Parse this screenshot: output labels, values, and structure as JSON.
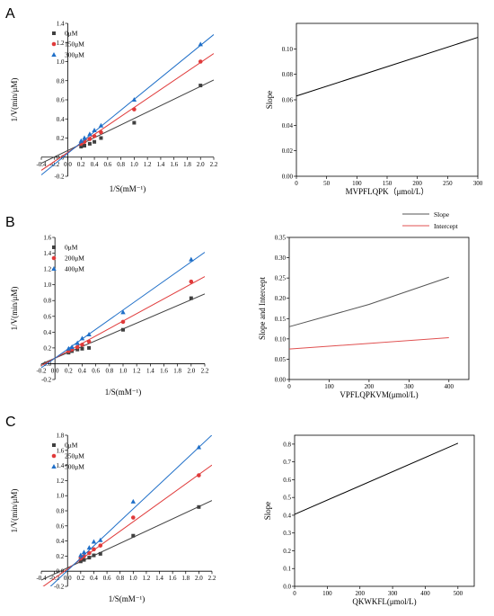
{
  "chart_data": [
    {
      "id": "A-lineweaver",
      "panel_label": "A",
      "type": "scatter",
      "title": "",
      "xlabel": "1/S(mM⁻¹)",
      "ylabel": "1/V(min/μM)",
      "xlim": [
        -0.4,
        2.2
      ],
      "ylim": [
        -0.2,
        1.4
      ],
      "xticks": [
        -0.4,
        -0.2,
        0.0,
        0.2,
        0.4,
        0.6,
        0.8,
        1.0,
        1.2,
        1.4,
        1.6,
        1.8,
        2.0,
        2.2
      ],
      "xticklabels": [
        "-0.4",
        "-0.2",
        "0.0",
        "0.2",
        "0.4",
        "0.6",
        "0.8",
        "1.0",
        "1.2",
        "1.4",
        "1.6",
        "1.8",
        "2.0",
        "2.2"
      ],
      "yticks": [
        -0.2,
        0.0,
        0.2,
        0.4,
        0.6,
        0.8,
        1.0,
        1.2,
        1.4
      ],
      "yticklabels": [
        "-0.2",
        "0.0",
        "0.2",
        "0.4",
        "0.6",
        "0.8",
        "1.0",
        "1.2",
        "1.4"
      ],
      "legend": "top-left",
      "grid": false,
      "series": [
        {
          "name": "0μM",
          "marker": "square",
          "color": "#404040",
          "x": [
            0.2,
            0.25,
            0.33,
            0.4,
            0.5,
            1.0,
            2.0
          ],
          "y": [
            0.11,
            0.12,
            0.14,
            0.16,
            0.2,
            0.36,
            0.75
          ],
          "fit": {
            "slope": 0.335,
            "intercept": 0.07
          }
        },
        {
          "name": "150μM",
          "marker": "circle",
          "color": "#e03a3a",
          "x": [
            0.2,
            0.25,
            0.33,
            0.4,
            0.5,
            1.0,
            2.0
          ],
          "y": [
            0.14,
            0.16,
            0.19,
            0.22,
            0.26,
            0.5,
            1.0
          ],
          "fit": {
            "slope": 0.47,
            "intercept": 0.05
          }
        },
        {
          "name": "300μM",
          "marker": "triangle",
          "color": "#1f6fc8",
          "x": [
            0.2,
            0.25,
            0.33,
            0.4,
            0.5,
            1.0,
            2.0
          ],
          "y": [
            0.17,
            0.2,
            0.24,
            0.28,
            0.33,
            0.6,
            1.18
          ],
          "fit": {
            "slope": 0.565,
            "intercept": 0.04
          }
        }
      ]
    },
    {
      "id": "A-secondary",
      "type": "line",
      "title": "",
      "xlabel": "MVPFLQPK（μmol/L）",
      "ylabel": "Slope",
      "xlim": [
        0,
        300
      ],
      "ylim": [
        0.0,
        0.12
      ],
      "xticks": [
        0,
        50,
        100,
        150,
        200,
        250,
        300
      ],
      "xticklabels": [
        "0",
        "50",
        "100",
        "150",
        "200",
        "250",
        "300"
      ],
      "yticks": [
        0.0,
        0.02,
        0.04,
        0.06,
        0.08,
        0.1
      ],
      "yticklabels": [
        "0.00",
        "0.02",
        "0.04",
        "0.06",
        "0.08",
        "0.10"
      ],
      "grid": false,
      "series": [
        {
          "name": "",
          "color": "#000000",
          "x": [
            0,
            300
          ],
          "y": [
            0.063,
            0.109
          ]
        }
      ]
    },
    {
      "id": "B-lineweaver",
      "panel_label": "B",
      "type": "scatter",
      "title": "",
      "xlabel": "1/S(mM⁻¹)",
      "ylabel": "1/V(min/μM)",
      "xlim": [
        -0.2,
        2.2
      ],
      "ylim": [
        -0.2,
        1.6
      ],
      "xticks": [
        -0.2,
        0.0,
        0.2,
        0.4,
        0.6,
        0.8,
        1.0,
        1.2,
        1.4,
        1.6,
        1.8,
        2.0,
        2.2
      ],
      "xticklabels": [
        "-0.2",
        "0.0",
        "0.2",
        "0.4",
        "0.6",
        "0.8",
        "1.0",
        "1.2",
        "1.4",
        "1.6",
        "1.8",
        "2.0",
        "2.2"
      ],
      "yticks": [
        -0.2,
        0.0,
        0.2,
        0.4,
        0.6,
        0.8,
        1.0,
        1.2,
        1.4,
        1.6
      ],
      "yticklabels": [
        "-0.2",
        "0.0",
        "0.2",
        "0.4",
        "0.6",
        "0.8",
        "1.0",
        "1.2",
        "1.4",
        "1.6"
      ],
      "legend": "top-left",
      "grid": false,
      "series": [
        {
          "name": "0μM",
          "marker": "square",
          "color": "#404040",
          "x": [
            0.2,
            0.25,
            0.33,
            0.4,
            0.5,
            1.0,
            2.0
          ],
          "y": [
            0.14,
            0.16,
            0.18,
            0.19,
            0.2,
            0.43,
            0.83
          ],
          "fit": {
            "slope": 0.37,
            "intercept": 0.07
          }
        },
        {
          "name": "200μM",
          "marker": "circle",
          "color": "#e03a3a",
          "x": [
            0.2,
            0.25,
            0.33,
            0.4,
            0.5,
            1.0,
            2.0
          ],
          "y": [
            0.16,
            0.18,
            0.21,
            0.24,
            0.28,
            0.53,
            1.04
          ],
          "fit": {
            "slope": 0.47,
            "intercept": 0.07
          }
        },
        {
          "name": "400μM",
          "marker": "triangle",
          "color": "#1f6fc8",
          "x": [
            0.2,
            0.25,
            0.33,
            0.4,
            0.5,
            1.0,
            2.0
          ],
          "y": [
            0.19,
            0.21,
            0.26,
            0.32,
            0.37,
            0.65,
            1.32
          ],
          "fit": {
            "slope": 0.61,
            "intercept": 0.07
          }
        }
      ]
    },
    {
      "id": "B-secondary",
      "type": "line",
      "title": "",
      "xlabel": "VPFLQPKVM(μmol/L)",
      "ylabel": "Slope and Intercept",
      "xlim": [
        0,
        450
      ],
      "ylim": [
        0.0,
        0.35
      ],
      "xticks": [
        0,
        100,
        200,
        300,
        400
      ],
      "xticklabels": [
        "0",
        "100",
        "200",
        "300",
        "400"
      ],
      "yticks": [
        0.0,
        0.05,
        0.1,
        0.15,
        0.2,
        0.25,
        0.3,
        0.35
      ],
      "yticklabels": [
        "0.00",
        "0.05",
        "0.10",
        "0.15",
        "0.20",
        "0.25",
        "0.30",
        "0.35"
      ],
      "legend": "top-right",
      "grid": false,
      "series": [
        {
          "name": "Slope",
          "color": "#555555",
          "x": [
            0,
            200,
            400
          ],
          "y": [
            0.13,
            0.185,
            0.252
          ]
        },
        {
          "name": "Intercept",
          "color": "#e05050",
          "x": [
            0,
            200,
            400
          ],
          "y": [
            0.075,
            0.089,
            0.103
          ]
        }
      ]
    },
    {
      "id": "C-lineweaver",
      "panel_label": "C",
      "type": "scatter",
      "title": "",
      "xlabel": "1/S(mM⁻¹)",
      "ylabel": "1/V(min/μM)",
      "xlim": [
        -0.4,
        2.2
      ],
      "ylim": [
        -0.2,
        1.8
      ],
      "xticks": [
        -0.4,
        -0.2,
        0.0,
        0.2,
        0.4,
        0.6,
        0.8,
        1.0,
        1.2,
        1.4,
        1.6,
        1.8,
        2.0,
        2.2
      ],
      "xticklabels": [
        "-0.4",
        "-0.2",
        "0.0",
        "0.2",
        "0.4",
        "0.6",
        "0.8",
        "1.0",
        "1.2",
        "1.4",
        "1.6",
        "1.8",
        "2.0",
        "2.2"
      ],
      "yticks": [
        -0.2,
        0.0,
        0.2,
        0.4,
        0.6,
        0.8,
        1.0,
        1.2,
        1.4,
        1.6,
        1.8
      ],
      "yticklabels": [
        "-0.2",
        "0.0",
        "0.2",
        "0.4",
        "0.6",
        "0.8",
        "1.0",
        "1.2",
        "1.4",
        "1.6",
        "1.8"
      ],
      "legend": "top-left",
      "grid": false,
      "series": [
        {
          "name": "0μM",
          "marker": "square",
          "color": "#404040",
          "x": [
            0.2,
            0.25,
            0.33,
            0.4,
            0.5,
            1.0,
            2.0
          ],
          "y": [
            0.13,
            0.15,
            0.18,
            0.21,
            0.23,
            0.47,
            0.85
          ],
          "fit": {
            "slope": 0.405,
            "intercept": 0.045
          }
        },
        {
          "name": "250μM",
          "marker": "circle",
          "color": "#e03a3a",
          "x": [
            0.2,
            0.25,
            0.33,
            0.4,
            0.5,
            1.0,
            2.0
          ],
          "y": [
            0.17,
            0.2,
            0.24,
            0.29,
            0.34,
            0.71,
            1.27
          ],
          "fit": {
            "slope": 0.625,
            "intercept": 0.03
          }
        },
        {
          "name": "500μM",
          "marker": "triangle",
          "color": "#1f6fc8",
          "x": [
            0.2,
            0.25,
            0.33,
            0.4,
            0.5,
            1.0,
            2.0
          ],
          "y": [
            0.21,
            0.25,
            0.31,
            0.39,
            0.41,
            0.92,
            1.64
          ],
          "fit": {
            "slope": 0.815,
            "intercept": 0.01
          }
        }
      ]
    },
    {
      "id": "C-secondary",
      "type": "line",
      "title": "",
      "xlabel": "QKWKFL(μmol/L)",
      "ylabel": "Slope",
      "xlim": [
        0,
        550
      ],
      "ylim": [
        0.0,
        0.85
      ],
      "xticks": [
        0,
        100,
        200,
        300,
        400,
        500
      ],
      "xticklabels": [
        "0",
        "100",
        "200",
        "300",
        "400",
        "500"
      ],
      "yticks": [
        0.0,
        0.1,
        0.2,
        0.3,
        0.4,
        0.5,
        0.6,
        0.7,
        0.8
      ],
      "yticklabels": [
        "0.0",
        "0.1",
        "0.2",
        "0.3",
        "0.4",
        "0.5",
        "0.6",
        "0.7",
        "0.8"
      ],
      "grid": false,
      "series": [
        {
          "name": "",
          "color": "#000000",
          "x": [
            0,
            500
          ],
          "y": [
            0.405,
            0.805
          ]
        }
      ]
    }
  ]
}
